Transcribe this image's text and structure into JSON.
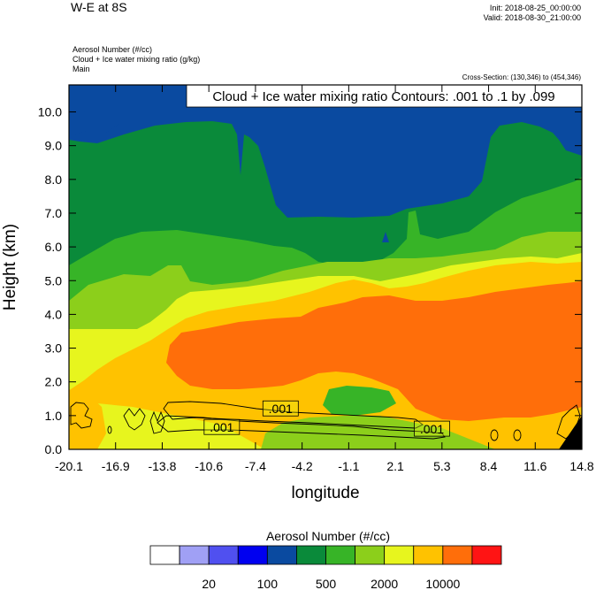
{
  "header": {
    "title": "W-E at 8S",
    "init": "Init: 2018-08-25_00:00:00",
    "valid": "Valid: 2018-08-30_21:00:00",
    "field_1": "Aerosol Number   (#/cc)",
    "field_2": "Cloud + Ice water mixing ratio   (g/kg)",
    "field_3": "Main",
    "cross_section": "Cross-Section: (130,346) to (454,346)"
  },
  "chart_data": {
    "type": "heatmap",
    "contour_title": "Cloud + Ice water mixing ratio Contours: .001 to .1 by .099",
    "xlabel": "longitude",
    "ylabel": "Height (km)",
    "xlim": [
      -20.1,
      14.8
    ],
    "ylim": [
      0.0,
      10.8
    ],
    "x_ticks": [
      "-20.1",
      "-16.9",
      "-13.8",
      "-10.6",
      "-7.4",
      "-4.2",
      "-1.1",
      "2.1",
      "5.3",
      "8.4",
      "11.6",
      "14.8"
    ],
    "y_ticks": [
      "0.0",
      "1.0",
      "2.0",
      "3.0",
      "4.0",
      "5.0",
      "6.0",
      "7.0",
      "8.0",
      "9.0",
      "10.0"
    ],
    "contour_labels": [
      {
        "text": ".001",
        "x": -5.7,
        "y": 1.2
      },
      {
        "text": ".001",
        "x": -9.7,
        "y": 0.65
      },
      {
        "text": ".001",
        "x": 4.6,
        "y": 0.6
      }
    ],
    "colorbar": {
      "title": "Aerosol Number  (#/cc)",
      "colors": [
        "#ffffff",
        "#a0a0f5",
        "#5050f0",
        "#0000f0",
        "#0a4aa0",
        "#0a8a3a",
        "#37b427",
        "#8ccf1b",
        "#e7f51e",
        "#ffc200",
        "#ff6e0a",
        "#ff1414"
      ],
      "labels": [
        "20",
        "100",
        "500",
        "2000",
        "10000"
      ]
    }
  }
}
